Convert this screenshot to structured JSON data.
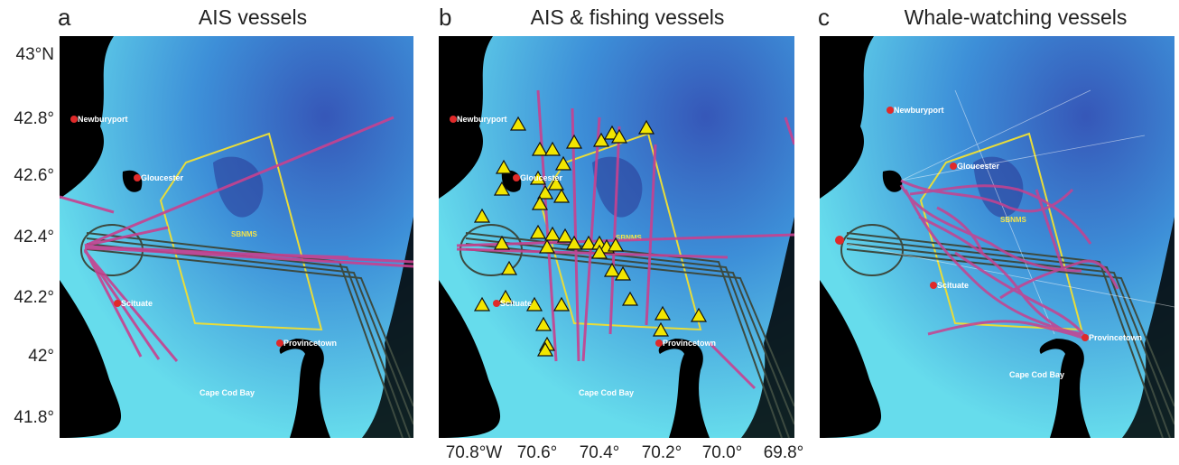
{
  "panels": [
    {
      "letter": "a",
      "title": "AIS vessels"
    },
    {
      "letter": "b",
      "title": "AIS & fishing vessels"
    },
    {
      "letter": "c",
      "title": "Whale-watching vessels"
    }
  ],
  "lat_axis": [
    "43°N",
    "42.8°",
    "42.6°",
    "42.4°",
    "42.2°",
    "42°",
    "41.8°"
  ],
  "lon_axis": [
    "70.8°W",
    "70.6°",
    "70.4°",
    "70.2°",
    "70.0°",
    "69.8°"
  ],
  "places": {
    "newburyport": "Newburyport",
    "gloucester": "Gloucester",
    "scituate": "Scituate",
    "provincetown": "Provincetown",
    "cape_cod_bay": "Cape Cod Bay",
    "sbnms": "SBNMS"
  },
  "colors": {
    "land": "#000000",
    "shallow_water": "#5cd6ea",
    "deep_water": "#3a68c4",
    "track": "#c8418f",
    "sanctuary_boundary": "#e8dc3a",
    "shipping_lanes": "#3c4a40",
    "fishing_marker": "#f2e600",
    "port": "#e02a2a"
  }
}
